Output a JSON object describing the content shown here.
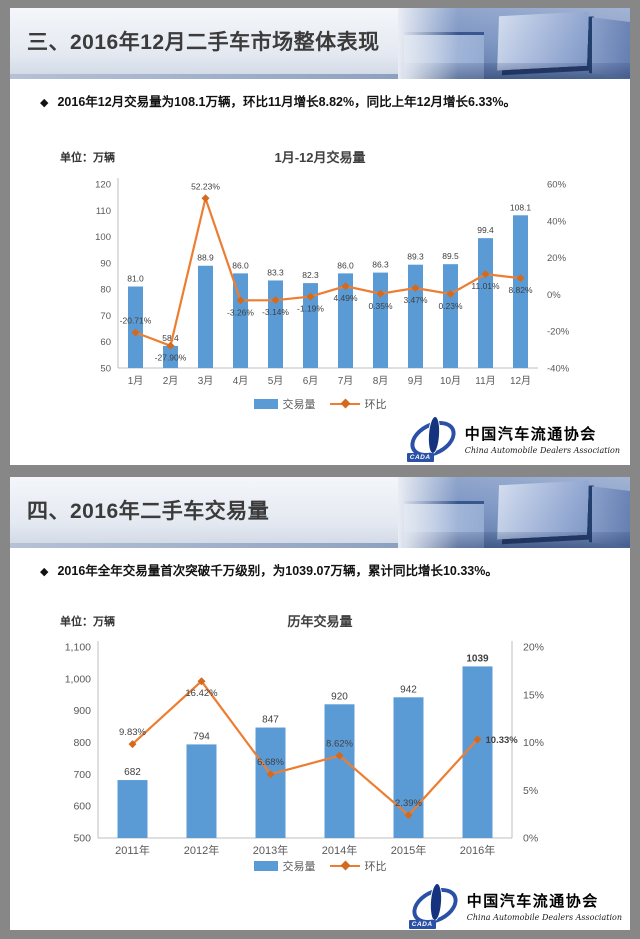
{
  "colors": {
    "bar": "#5b9bd5",
    "line": "#ed7d31",
    "marker": "#d26a1f",
    "frame_gray": "#878787"
  },
  "slide1": {
    "section_title": "三、2016年12月二手车市场整体表现",
    "bullet_marker": "◆",
    "bullet": "2016年12月交易量为108.1万辆，环比11月增长8.82%，同比上年12月增长6.33%。"
  },
  "slide2": {
    "section_title": "四、2016年二手车交易量",
    "bullet_marker": "◆",
    "bullet": "2016年全年交易量首次突破千万级别，为1039.07万辆，累计同比增长10.33%。"
  },
  "logo": {
    "cada": "CADA",
    "cn": "中国汽车流通协会",
    "en": "China Automobile Dealers Association"
  },
  "chart_data": [
    {
      "type": "combo-bar-line",
      "title": "1月-12月交易量",
      "unit_label": "单位：万辆",
      "categories": [
        "1月",
        "2月",
        "3月",
        "4月",
        "5月",
        "6月",
        "7月",
        "8月",
        "9月",
        "10月",
        "11月",
        "12月"
      ],
      "bar_series": {
        "name": "交易量",
        "values": [
          81.0,
          58.4,
          88.9,
          86.0,
          83.3,
          82.3,
          86.0,
          86.3,
          89.3,
          89.5,
          99.4,
          108.1
        ],
        "labels": [
          "81.0",
          "58.4",
          "88.9",
          "86.0",
          "83.3",
          "82.3",
          "86.0",
          "86.3",
          "89.3",
          "89.5",
          "99.4",
          "108.1"
        ]
      },
      "line_series": {
        "name": "环比",
        "values": [
          -20.71,
          -27.9,
          52.23,
          -3.26,
          -3.14,
          -1.19,
          4.49,
          0.35,
          3.47,
          0.23,
          11.01,
          8.82
        ],
        "labels": [
          "-20.71%",
          "-27.90%",
          "52.23%",
          "-3.26%",
          "-3.14%",
          "-1.19%",
          "4.49%",
          "0.35%",
          "3.47%",
          "0.23%",
          "11.01%",
          "8.82%"
        ],
        "label_pos": [
          "above",
          "below",
          "above",
          "below",
          "below",
          "below",
          "below",
          "below",
          "below",
          "below",
          "below",
          "below"
        ]
      },
      "left_axis": {
        "min": 50,
        "max": 120,
        "step": 10,
        "format": "plain"
      },
      "right_axis": {
        "min": -40,
        "max": 60,
        "step": 20,
        "suffix": "%"
      },
      "emphasis_index": -1,
      "legend": {
        "bar": "交易量",
        "line": "环比"
      }
    },
    {
      "type": "combo-bar-line",
      "title": "历年交易量",
      "unit_label": "单位：万辆",
      "categories": [
        "2011年",
        "2012年",
        "2013年",
        "2014年",
        "2015年",
        "2016年"
      ],
      "bar_series": {
        "name": "交易量",
        "values": [
          682,
          794,
          847,
          920,
          942,
          1039
        ],
        "labels": [
          "682",
          "794",
          "847",
          "920",
          "942",
          "1039"
        ]
      },
      "line_series": {
        "name": "环比",
        "values": [
          9.83,
          16.42,
          6.68,
          8.62,
          2.39,
          10.33
        ],
        "labels": [
          "9.83%",
          "16.42%",
          "6.68%",
          "8.62%",
          "2.39%",
          "10.33%"
        ],
        "label_pos": [
          "above",
          "below",
          "above",
          "above",
          "above",
          "right"
        ]
      },
      "left_axis": {
        "min": 500,
        "max": 1100,
        "step": 100,
        "format": "comma"
      },
      "right_axis": {
        "min": 0,
        "max": 20,
        "step": 5,
        "suffix": "%"
      },
      "emphasis_index": 5,
      "legend": {
        "bar": "交易量",
        "line": "环比"
      }
    }
  ]
}
